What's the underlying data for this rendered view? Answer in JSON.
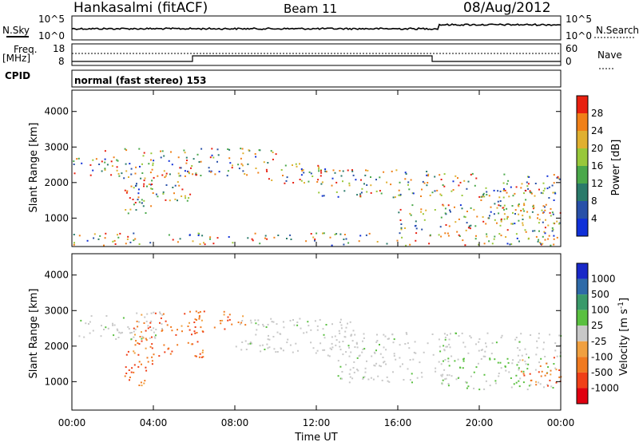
{
  "header": {
    "station": "Hankasalmi (fitACF)",
    "beam": "Beam 11",
    "date": "08/Aug/2012"
  },
  "panels": {
    "nsky_label": "N.Sky",
    "nsky_ticks": [
      "10^5",
      "10^0"
    ],
    "nsearch_label": "N.Search",
    "nsearch_ticks": [
      "10^5",
      "10^0"
    ],
    "freq_label": "Freq.",
    "freq_unit": "[MHz]",
    "freq_ticks": [
      "18",
      "8"
    ],
    "nave_label": "Nave",
    "nave_ticks": [
      "60",
      "0"
    ],
    "cpid_label": "CPID",
    "cpid_text": "normal (fast stereo) 153"
  },
  "chart_data": [
    {
      "type": "heatmap",
      "name": "power",
      "ylabel": "Slant Range [km]",
      "xlabel": "",
      "yticks": [
        "1000",
        "2000",
        "3000",
        "4000"
      ],
      "ylim": [
        200,
        4600
      ],
      "colorbar_label": "Power [dB]",
      "colorbar_ticks": [
        "4",
        "8",
        "12",
        "16",
        "20",
        "24",
        "28"
      ],
      "colorbar_colors": [
        "#1030d8",
        "#2850a8",
        "#2a7a6a",
        "#4aa84a",
        "#98c83a",
        "#e0b030",
        "#f08018",
        "#e82010"
      ],
      "scatter_bands": [
        {
          "t0": 0.0,
          "t1": 2.0,
          "r0": 2200,
          "r1": 2700
        },
        {
          "t0": 1.5,
          "t1": 6.5,
          "r0": 2200,
          "r1": 3000
        },
        {
          "t0": 2.5,
          "t1": 4.0,
          "r0": 900,
          "r1": 2200
        },
        {
          "t0": 3.0,
          "t1": 6.0,
          "r0": 1500,
          "r1": 2300
        },
        {
          "t0": 6.0,
          "t1": 10.0,
          "r0": 2200,
          "r1": 3000
        },
        {
          "t0": 9.5,
          "t1": 13.5,
          "r0": 2000,
          "r1": 2600
        },
        {
          "t0": 12.0,
          "t1": 18.0,
          "r0": 1600,
          "r1": 2400
        },
        {
          "t0": 16.0,
          "t1": 24.0,
          "r0": 600,
          "r1": 1400
        },
        {
          "t0": 18.0,
          "t1": 24.0,
          "r0": 1600,
          "r1": 2300
        },
        {
          "t0": 20.0,
          "t1": 24.0,
          "r0": 900,
          "r1": 1900
        },
        {
          "t0": 0.0,
          "t1": 24.0,
          "r0": 250,
          "r1": 600
        }
      ]
    },
    {
      "type": "heatmap",
      "name": "velocity",
      "ylabel": "Slant Range [km]",
      "xlabel": "Time UT",
      "yticks": [
        "1000",
        "2000",
        "3000",
        "4000"
      ],
      "ylim": [
        200,
        4600
      ],
      "xticks": [
        "00:00",
        "04:00",
        "08:00",
        "12:00",
        "16:00",
        "20:00",
        "00:00"
      ],
      "xlim": [
        0,
        24
      ],
      "colorbar_label": "Velocity",
      "colorbar_unit": "[m s",
      "colorbar_unit_sup": "-1",
      "colorbar_unit_end": "]",
      "colorbar_ticks": [
        "1000",
        "500",
        "100",
        "25",
        "-25",
        "-100",
        "-500",
        "-1000"
      ],
      "colorbar_colors": [
        "#1828c8",
        "#2e6aa8",
        "#3a9a6a",
        "#5ac040",
        "#c8c8c8",
        "#f0a040",
        "#f07a20",
        "#f04018",
        "#e00010"
      ],
      "scatter_bands": [
        {
          "t0": 0.0,
          "t1": 4.5,
          "r0": 2200,
          "r1": 3000,
          "v": 0
        },
        {
          "t0": 3.0,
          "t1": 6.5,
          "r0": 1700,
          "r1": 3000,
          "v": -400
        },
        {
          "t0": 6.0,
          "t1": 8.5,
          "r0": 2500,
          "r1": 3000,
          "v": -700
        },
        {
          "t0": 2.5,
          "t1": 4.0,
          "r0": 900,
          "r1": 2200,
          "v": -300
        },
        {
          "t0": 8.0,
          "t1": 14.0,
          "r0": 1800,
          "r1": 2800,
          "v": 0
        },
        {
          "t0": 12.0,
          "t1": 24.0,
          "r0": 1700,
          "r1": 2400,
          "v": 0
        },
        {
          "t0": 13.0,
          "t1": 19.0,
          "r0": 1000,
          "r1": 1700,
          "v": 0
        },
        {
          "t0": 18.0,
          "t1": 24.0,
          "r0": 800,
          "r1": 1700,
          "v": 50
        },
        {
          "t0": 22.0,
          "t1": 24.0,
          "r0": 900,
          "r1": 1700,
          "v": -300
        }
      ]
    }
  ]
}
